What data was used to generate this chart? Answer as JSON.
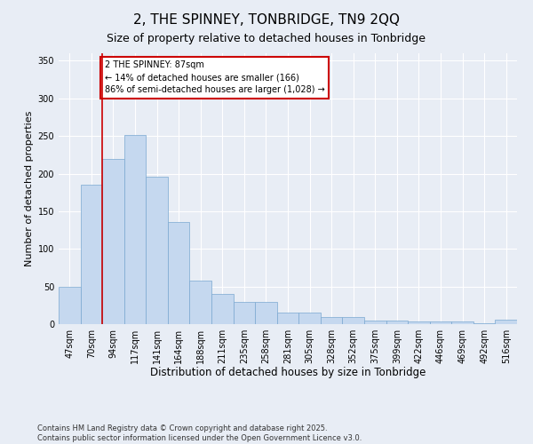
{
  "title": "2, THE SPINNEY, TONBRIDGE, TN9 2QQ",
  "subtitle": "Size of property relative to detached houses in Tonbridge",
  "xlabel": "Distribution of detached houses by size in Tonbridge",
  "ylabel": "Number of detached properties",
  "categories": [
    "47sqm",
    "70sqm",
    "94sqm",
    "117sqm",
    "141sqm",
    "164sqm",
    "188sqm",
    "211sqm",
    "235sqm",
    "258sqm",
    "281sqm",
    "305sqm",
    "328sqm",
    "352sqm",
    "375sqm",
    "399sqm",
    "422sqm",
    "446sqm",
    "469sqm",
    "492sqm",
    "516sqm"
  ],
  "values": [
    49,
    185,
    220,
    252,
    196,
    136,
    58,
    40,
    29,
    29,
    15,
    15,
    9,
    9,
    5,
    5,
    4,
    3,
    3,
    1,
    6
  ],
  "bar_color": "#c5d8ef",
  "bar_edge_color": "#7aa8d0",
  "vline_x": 1.5,
  "annotation_text": "2 THE SPINNEY: 87sqm\n← 14% of detached houses are smaller (166)\n86% of semi-detached houses are larger (1,028) →",
  "annotation_box_color": "#ffffff",
  "annotation_box_edge_color": "#cc0000",
  "vline_color": "#cc0000",
  "ylim": [
    0,
    360
  ],
  "yticks": [
    0,
    50,
    100,
    150,
    200,
    250,
    300,
    350
  ],
  "background_color": "#e8edf5",
  "plot_background": "#e8edf5",
  "footer_text": "Contains HM Land Registry data © Crown copyright and database right 2025.\nContains public sector information licensed under the Open Government Licence v3.0.",
  "title_fontsize": 11,
  "subtitle_fontsize": 9,
  "xlabel_fontsize": 8.5,
  "ylabel_fontsize": 8,
  "tick_fontsize": 7,
  "annotation_fontsize": 7,
  "footer_fontsize": 6
}
